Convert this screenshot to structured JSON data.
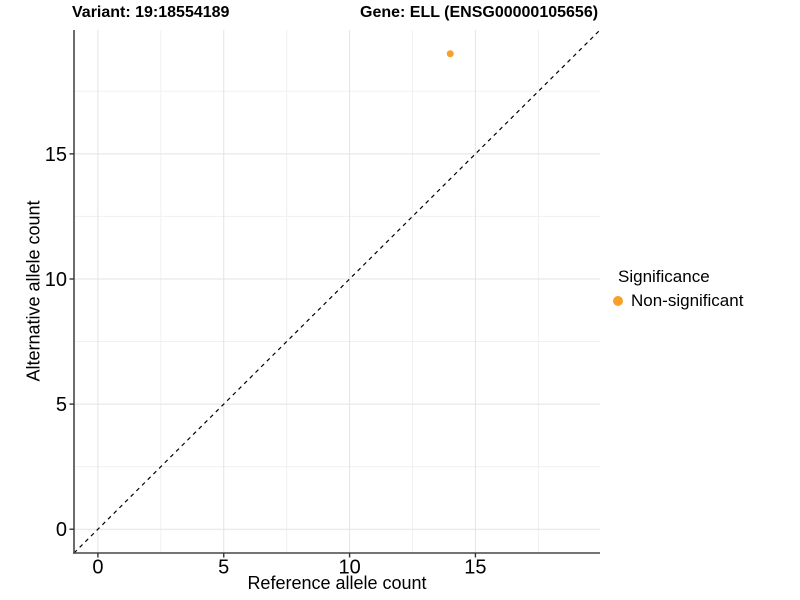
{
  "page": {
    "background": "#FFFFFF"
  },
  "chart_data": {
    "type": "scatter",
    "title_variant": "Variant: 19:18554189",
    "title_gene": "Gene: ELL (ENSG00000105656)",
    "xlabel": "Reference allele count",
    "ylabel": "Alternative allele count",
    "xlim": [
      -0.95,
      19.95
    ],
    "ylim": [
      -0.95,
      19.95
    ],
    "xticks": [
      0,
      5,
      10,
      15
    ],
    "yticks": [
      0,
      5,
      10,
      15
    ],
    "xticks_minor": [
      2.5,
      7.5,
      12.5,
      17.5
    ],
    "yticks_minor": [
      2.5,
      7.5,
      12.5,
      17.5
    ],
    "grid": {
      "on": true,
      "major_color": "#E3E3E3",
      "minor_color": "#F0F0F0"
    },
    "axis": {
      "line_color": "#474747",
      "tick_color": "#333333",
      "text_color": "#000000"
    },
    "identity_line": {
      "style": "dashed",
      "color": "#000000",
      "from": [
        -0.95,
        -0.95
      ],
      "to": [
        19.95,
        19.95
      ]
    },
    "series": [
      {
        "name": "Non-significant",
        "color": "#F9A02B",
        "point_radius": 3.5,
        "points": [
          {
            "x": 14,
            "y": 19
          }
        ]
      }
    ],
    "legend": {
      "title": "Significance",
      "position": "right",
      "items": [
        {
          "label": "Non-significant",
          "color": "#F9A02B"
        }
      ]
    }
  }
}
